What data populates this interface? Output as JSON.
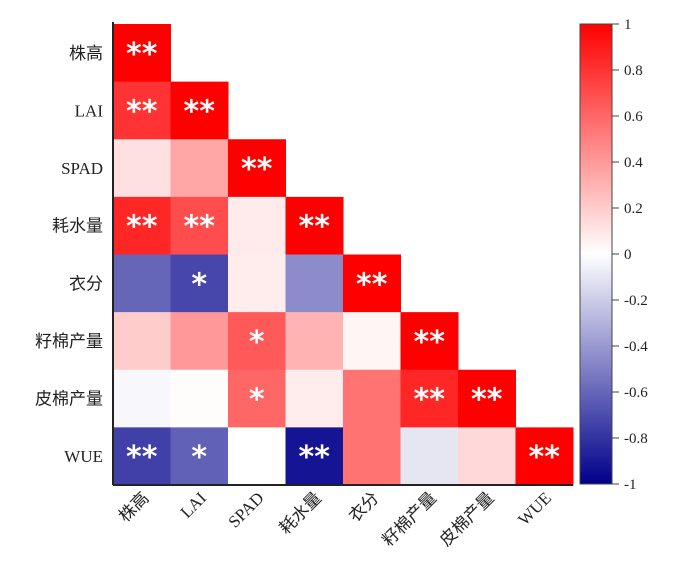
{
  "chart_data": {
    "type": "heatmap",
    "title": "",
    "variables": [
      "株高",
      "LAI",
      "SPAD",
      "耗水量",
      "衣分",
      "籽棉产量",
      "皮棉产量",
      "WUE"
    ],
    "layout": "lower-triangle",
    "matrix": [
      [
        1.0
      ],
      [
        0.8,
        1.0
      ],
      [
        0.12,
        0.35,
        1.0
      ],
      [
        0.85,
        0.7,
        0.08,
        1.0
      ],
      [
        -0.6,
        -0.72,
        0.07,
        -0.45,
        1.0
      ],
      [
        0.2,
        0.4,
        0.65,
        0.3,
        0.04,
        1.0
      ],
      [
        -0.03,
        0.01,
        0.6,
        0.07,
        0.55,
        0.85,
        1.0
      ],
      [
        -0.75,
        -0.62,
        0.0,
        -0.92,
        0.55,
        -0.1,
        0.15,
        1.0
      ]
    ],
    "significance": [
      [
        "**"
      ],
      [
        "**",
        "**"
      ],
      [
        "",
        "",
        "**"
      ],
      [
        "**",
        "**",
        "",
        "**"
      ],
      [
        "",
        "*",
        "",
        "",
        "**"
      ],
      [
        "",
        "",
        "*",
        "",
        "",
        "**"
      ],
      [
        "",
        "",
        "*",
        "",
        "",
        "**",
        "**"
      ],
      [
        "**",
        "*",
        "",
        "**",
        "",
        "",
        "",
        "**"
      ]
    ],
    "colorbar": {
      "range": [
        -1,
        1
      ],
      "ticks": [
        "1",
        "0.8",
        "0.6",
        "0.4",
        "0.2",
        "0",
        "-0.2",
        "-0.4",
        "-0.6",
        "-0.8",
        "-1"
      ],
      "colors": {
        "high": "#ff0000",
        "mid": "#ffffff",
        "low": "#00008b"
      },
      "placement": "right"
    }
  }
}
